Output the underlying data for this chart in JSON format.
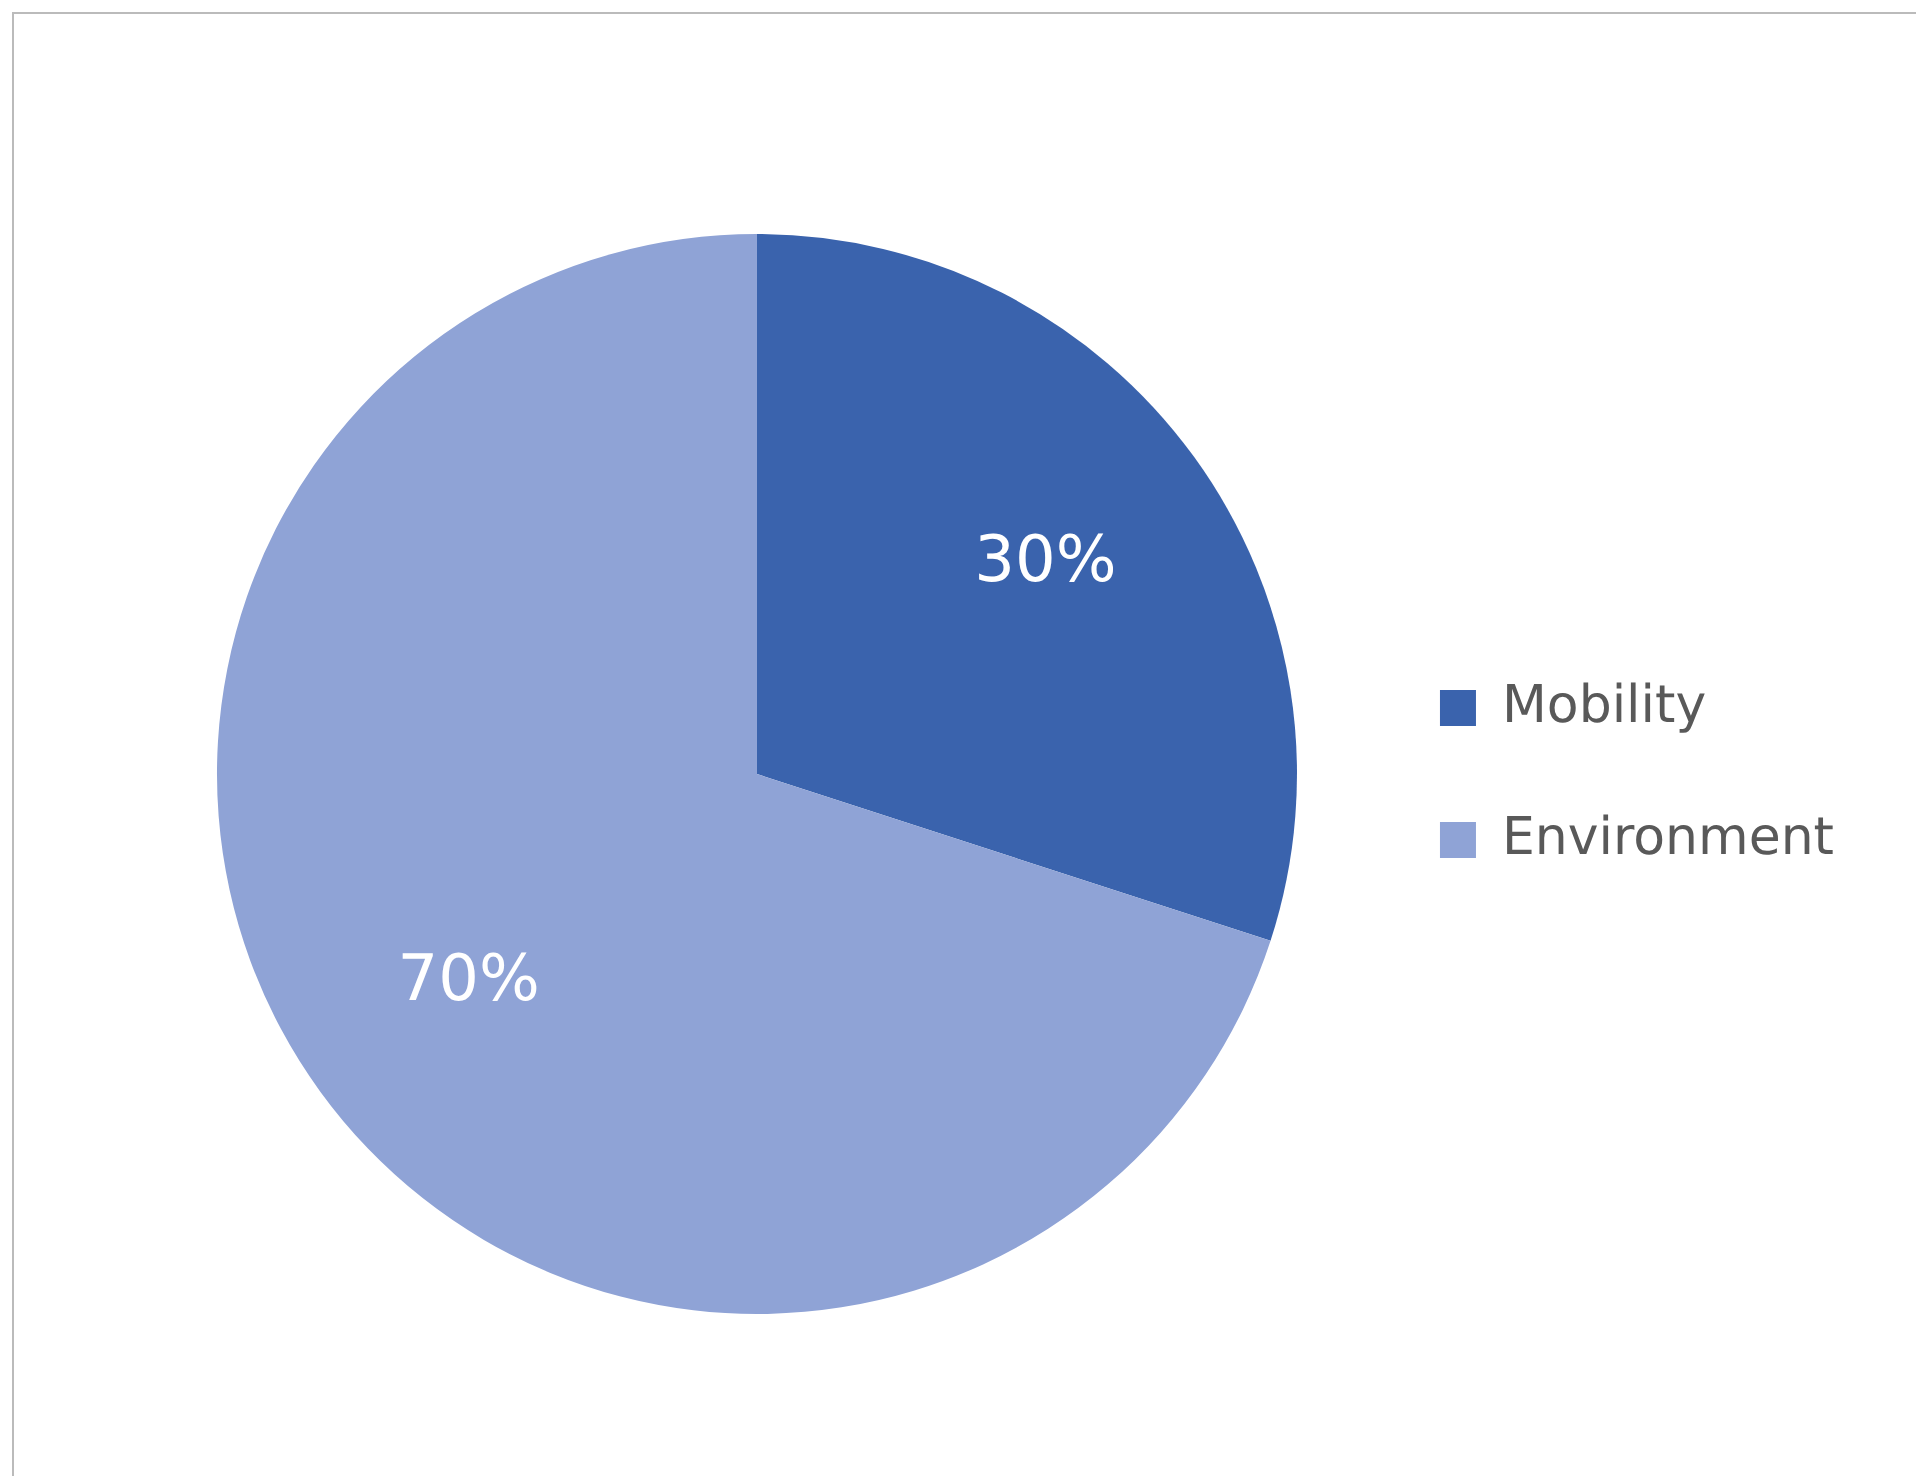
{
  "chart_data": {
    "type": "pie",
    "categories": [
      "Mobility",
      "Environment"
    ],
    "values": [
      30,
      70
    ],
    "colors": [
      "#3a63ad",
      "#8fa3d6"
    ],
    "value_labels": [
      "30%",
      "70%"
    ],
    "legend": "right"
  }
}
